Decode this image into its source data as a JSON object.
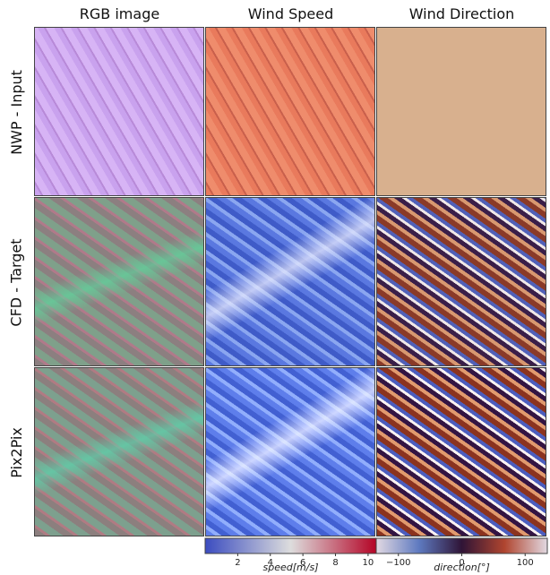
{
  "columns": [
    "RGB image",
    "Wind Speed",
    "Wind Direction"
  ],
  "rows": [
    "NWP - Input",
    "CFD - Target",
    "Pix2Pix"
  ],
  "colorbars": [
    {
      "label": "speed[m/s]",
      "lim": [
        0,
        10.5
      ],
      "ticks": [
        2,
        4,
        6,
        8,
        10
      ]
    },
    {
      "label": "direction[°]",
      "lim": [
        -135,
        135
      ],
      "ticks": [
        {
          "value": -100,
          "label": "−100"
        },
        0,
        100
      ]
    }
  ]
}
